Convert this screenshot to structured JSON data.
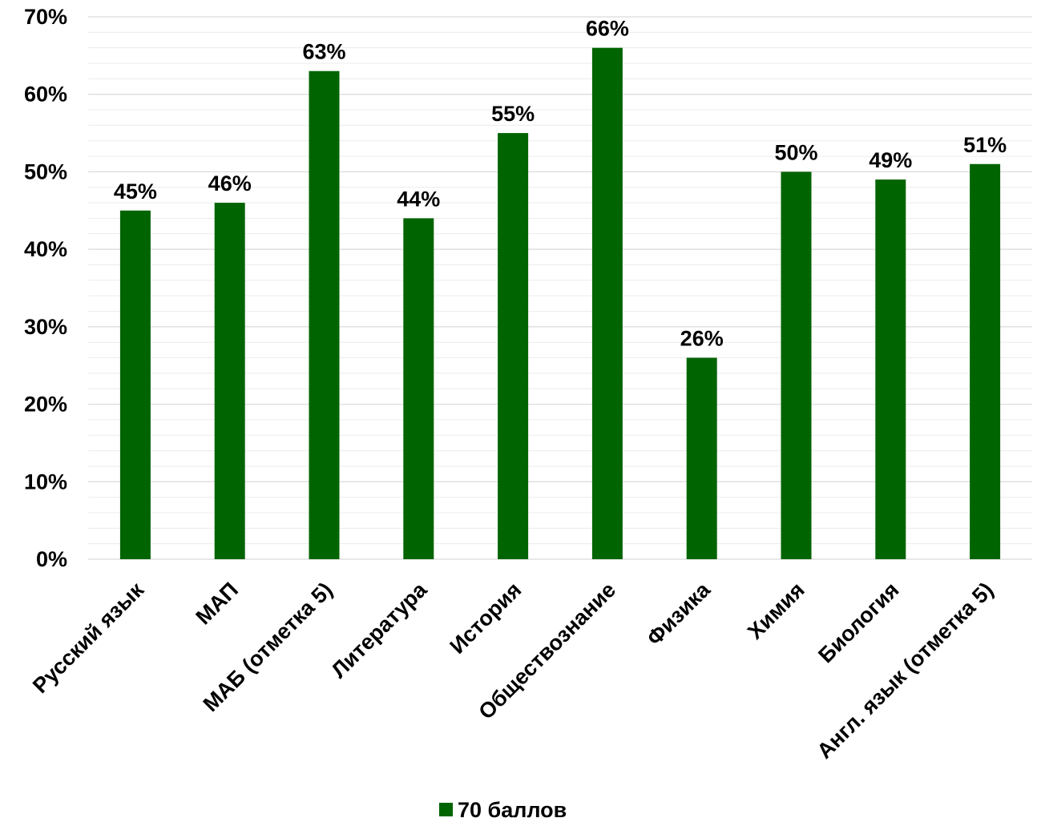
{
  "chart_data": {
    "type": "bar",
    "categories": [
      "Русский язык",
      "МАП",
      "МАБ (отметка 5)",
      "Литература",
      "История",
      "Обществознание",
      "Физика",
      "Химия",
      "Биология",
      "Англ. язык (отметка 5)"
    ],
    "series": [
      {
        "name": "70 баллов",
        "values": [
          45,
          46,
          63,
          44,
          55,
          66,
          26,
          50,
          49,
          51
        ],
        "color": "#006400"
      }
    ],
    "data_labels": [
      "45%",
      "46%",
      "63%",
      "44%",
      "55%",
      "66%",
      "26%",
      "50%",
      "49%",
      "51%"
    ],
    "y_ticks": [
      0,
      10,
      20,
      30,
      40,
      50,
      60,
      70
    ],
    "y_tick_labels": [
      "0%",
      "10%",
      "20%",
      "30%",
      "40%",
      "50%",
      "60%",
      "70%"
    ],
    "ylim": [
      0,
      70
    ],
    "minor_gridlines_per_major": 5,
    "grid": true,
    "legend_position": "bottom-center",
    "x_label_rotation": "-45 degrees",
    "title": "",
    "xlabel": "",
    "ylabel": "",
    "colors": {
      "bar": "#006400",
      "gridline": "#d9d9d9",
      "text": "#000000"
    }
  }
}
